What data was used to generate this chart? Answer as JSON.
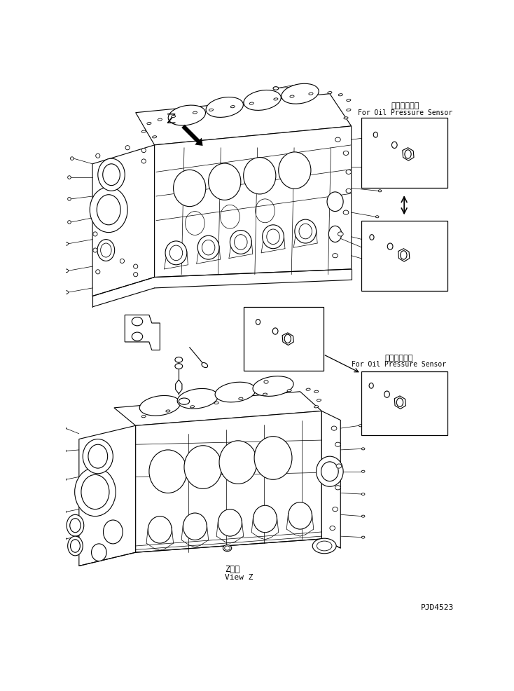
{
  "bg_color": "#ffffff",
  "lc": "#000000",
  "fig_width": 7.34,
  "fig_height": 9.86,
  "dpi": 100,
  "title_jp1": "油圧センサ用",
  "title_en1": "For Oil Pressure Sensor",
  "title_jp2": "油圧センサ用",
  "title_en2": "For Oil Pressure Sensor",
  "view_jp": "Z　視",
  "view_en": "View Z",
  "part_number": "PJD4523",
  "Z_label": "Z"
}
